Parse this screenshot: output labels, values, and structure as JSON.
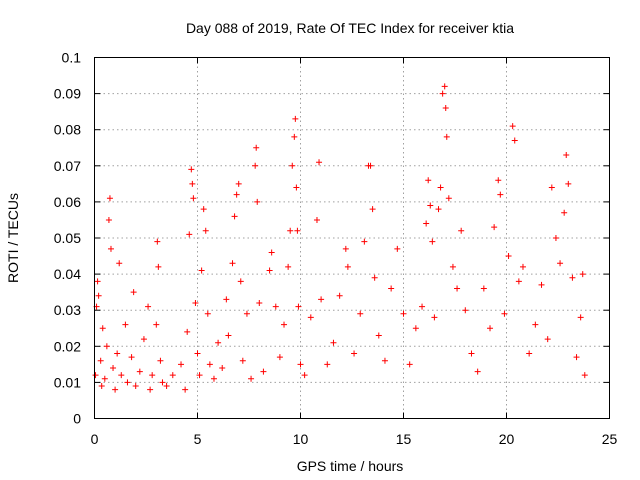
{
  "chart_data": {
    "type": "scatter",
    "title": "Day 088 of 2019, Rate Of TEC Index for receiver ktia",
    "xlabel": "GPS time / hours",
    "ylabel": "ROTI / TECUs",
    "xlim": [
      0,
      25
    ],
    "ylim": [
      0,
      0.1
    ],
    "x_ticks": [
      0,
      5,
      10,
      15,
      20,
      25
    ],
    "x_tick_labels": [
      "0",
      "5",
      "10",
      "15",
      "20",
      "25"
    ],
    "y_ticks": [
      0,
      0.01,
      0.02,
      0.03,
      0.04,
      0.05,
      0.06,
      0.07,
      0.08,
      0.09,
      0.1
    ],
    "y_tick_labels": [
      "0",
      "0.01",
      "0.02",
      "0.03",
      "0.04",
      "0.05",
      "0.06",
      "0.07",
      "0.08",
      "0.09",
      "0.1"
    ],
    "grid": true,
    "marker": "+",
    "color": "#ff0000",
    "series": [
      {
        "name": "ROTI",
        "points": [
          [
            0.05,
            0.012
          ],
          [
            0.1,
            0.031
          ],
          [
            0.15,
            0.038
          ],
          [
            0.2,
            0.034
          ],
          [
            0.3,
            0.016
          ],
          [
            0.35,
            0.009
          ],
          [
            0.4,
            0.025
          ],
          [
            0.5,
            0.011
          ],
          [
            0.6,
            0.02
          ],
          [
            0.7,
            0.055
          ],
          [
            0.75,
            0.061
          ],
          [
            0.8,
            0.047
          ],
          [
            0.9,
            0.014
          ],
          [
            1.0,
            0.008
          ],
          [
            1.1,
            0.018
          ],
          [
            1.2,
            0.043
          ],
          [
            1.3,
            0.012
          ],
          [
            1.5,
            0.026
          ],
          [
            1.6,
            0.01
          ],
          [
            1.8,
            0.017
          ],
          [
            1.9,
            0.035
          ],
          [
            2.0,
            0.009
          ],
          [
            2.2,
            0.013
          ],
          [
            2.4,
            0.022
          ],
          [
            2.6,
            0.031
          ],
          [
            2.7,
            0.008
          ],
          [
            2.8,
            0.012
          ],
          [
            3.0,
            0.026
          ],
          [
            3.05,
            0.049
          ],
          [
            3.1,
            0.042
          ],
          [
            3.2,
            0.016
          ],
          [
            3.3,
            0.01
          ],
          [
            3.5,
            0.009
          ],
          [
            3.8,
            0.012
          ],
          [
            4.2,
            0.015
          ],
          [
            4.4,
            0.008
          ],
          [
            4.5,
            0.024
          ],
          [
            4.6,
            0.051
          ],
          [
            4.7,
            0.069
          ],
          [
            4.75,
            0.065
          ],
          [
            4.8,
            0.061
          ],
          [
            4.9,
            0.032
          ],
          [
            5.0,
            0.018
          ],
          [
            5.1,
            0.012
          ],
          [
            5.2,
            0.041
          ],
          [
            5.3,
            0.058
          ],
          [
            5.4,
            0.052
          ],
          [
            5.5,
            0.029
          ],
          [
            5.6,
            0.015
          ],
          [
            5.8,
            0.011
          ],
          [
            6.0,
            0.021
          ],
          [
            6.2,
            0.014
          ],
          [
            6.4,
            0.033
          ],
          [
            6.5,
            0.023
          ],
          [
            6.7,
            0.043
          ],
          [
            6.8,
            0.056
          ],
          [
            6.9,
            0.062
          ],
          [
            7.0,
            0.065
          ],
          [
            7.1,
            0.038
          ],
          [
            7.2,
            0.016
          ],
          [
            7.4,
            0.029
          ],
          [
            7.6,
            0.011
          ],
          [
            7.8,
            0.07
          ],
          [
            7.85,
            0.075
          ],
          [
            7.9,
            0.06
          ],
          [
            8.0,
            0.032
          ],
          [
            8.2,
            0.013
          ],
          [
            8.5,
            0.041
          ],
          [
            8.6,
            0.046
          ],
          [
            8.8,
            0.031
          ],
          [
            9.0,
            0.017
          ],
          [
            9.2,
            0.026
          ],
          [
            9.4,
            0.042
          ],
          [
            9.5,
            0.052
          ],
          [
            9.6,
            0.07
          ],
          [
            9.7,
            0.078
          ],
          [
            9.75,
            0.083
          ],
          [
            9.8,
            0.064
          ],
          [
            9.85,
            0.052
          ],
          [
            9.9,
            0.031
          ],
          [
            10.0,
            0.015
          ],
          [
            10.2,
            0.012
          ],
          [
            10.5,
            0.028
          ],
          [
            10.8,
            0.055
          ],
          [
            10.9,
            0.071
          ],
          [
            11.0,
            0.033
          ],
          [
            11.3,
            0.015
          ],
          [
            11.6,
            0.021
          ],
          [
            11.9,
            0.034
          ],
          [
            12.2,
            0.047
          ],
          [
            12.3,
            0.042
          ],
          [
            12.6,
            0.018
          ],
          [
            12.9,
            0.029
          ],
          [
            13.1,
            0.049
          ],
          [
            13.3,
            0.07
          ],
          [
            13.4,
            0.07
          ],
          [
            13.5,
            0.058
          ],
          [
            13.6,
            0.039
          ],
          [
            13.8,
            0.023
          ],
          [
            14.1,
            0.016
          ],
          [
            14.4,
            0.036
          ],
          [
            14.7,
            0.047
          ],
          [
            15.0,
            0.029
          ],
          [
            15.3,
            0.015
          ],
          [
            15.6,
            0.025
          ],
          [
            15.9,
            0.031
          ],
          [
            16.1,
            0.054
          ],
          [
            16.2,
            0.066
          ],
          [
            16.3,
            0.059
          ],
          [
            16.4,
            0.049
          ],
          [
            16.5,
            0.028
          ],
          [
            16.7,
            0.058
          ],
          [
            16.8,
            0.064
          ],
          [
            16.9,
            0.09
          ],
          [
            17.0,
            0.092
          ],
          [
            17.05,
            0.086
          ],
          [
            17.1,
            0.078
          ],
          [
            17.2,
            0.061
          ],
          [
            17.4,
            0.042
          ],
          [
            17.6,
            0.036
          ],
          [
            17.8,
            0.052
          ],
          [
            18.0,
            0.03
          ],
          [
            18.3,
            0.018
          ],
          [
            18.6,
            0.013
          ],
          [
            18.9,
            0.036
          ],
          [
            19.2,
            0.025
          ],
          [
            19.4,
            0.053
          ],
          [
            19.6,
            0.066
          ],
          [
            19.7,
            0.062
          ],
          [
            19.9,
            0.029
          ],
          [
            20.1,
            0.045
          ],
          [
            20.3,
            0.081
          ],
          [
            20.4,
            0.077
          ],
          [
            20.6,
            0.038
          ],
          [
            20.8,
            0.042
          ],
          [
            21.1,
            0.018
          ],
          [
            21.4,
            0.026
          ],
          [
            21.7,
            0.037
          ],
          [
            22.0,
            0.022
          ],
          [
            22.2,
            0.064
          ],
          [
            22.4,
            0.05
          ],
          [
            22.6,
            0.043
          ],
          [
            22.8,
            0.057
          ],
          [
            22.9,
            0.073
          ],
          [
            23.0,
            0.065
          ],
          [
            23.2,
            0.039
          ],
          [
            23.4,
            0.017
          ],
          [
            23.6,
            0.028
          ],
          [
            23.7,
            0.04
          ],
          [
            23.8,
            0.012
          ]
        ]
      }
    ]
  }
}
